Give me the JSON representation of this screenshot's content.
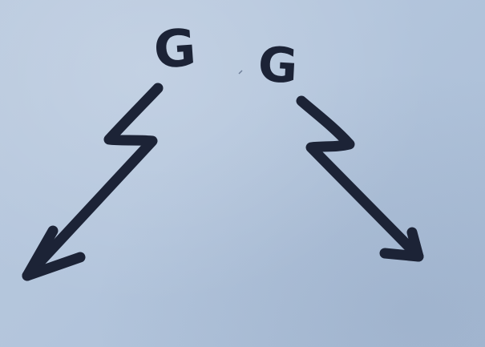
{
  "scene": {
    "description_free": true
  },
  "letters": {
    "left": "G",
    "right": "G"
  },
  "colors": {
    "ink": "#1c2336",
    "paper": "#b5c6dc"
  }
}
